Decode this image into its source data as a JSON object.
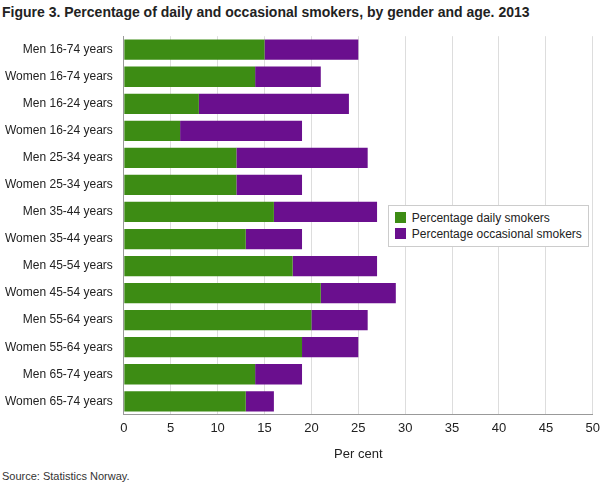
{
  "chart_data": {
    "type": "bar",
    "orientation": "horizontal",
    "stacked": true,
    "title": "Figure  3. Percentage of daily and occasional smokers, by gender and age. 2013",
    "source": "Source: Statistics Norway.",
    "x_label": "Per cent",
    "categories": [
      "Men 16-74 years",
      "Women 16-74 years",
      "Men 16-24 years",
      "Women 16-24 years",
      "Men 25-34 years",
      "Women 25-34 years",
      "Men 35-44 years",
      "Women 35-44 years",
      "Men 45-54 years",
      "Women 45-54 years",
      "Men 55-64 years",
      "Women 55-64 years",
      "Men 65-74 years",
      "Women 65-74 years"
    ],
    "series": [
      {
        "name": "Percentage daily smokers",
        "color": "#3d8c14",
        "values": [
          15,
          14,
          8,
          6,
          12,
          12,
          16,
          13,
          18,
          21,
          20,
          19,
          14,
          13
        ]
      },
      {
        "name": "Percentage occasional smokers",
        "color": "#6a0f8e",
        "values": [
          10,
          7,
          16,
          13,
          14,
          7,
          11,
          6,
          9,
          8,
          6,
          6,
          5,
          3
        ]
      }
    ],
    "xlim": [
      0,
      50
    ],
    "xticks": [
      0,
      5,
      10,
      15,
      20,
      25,
      30,
      35,
      40,
      45,
      50
    ],
    "grid": true,
    "legend": "right"
  }
}
